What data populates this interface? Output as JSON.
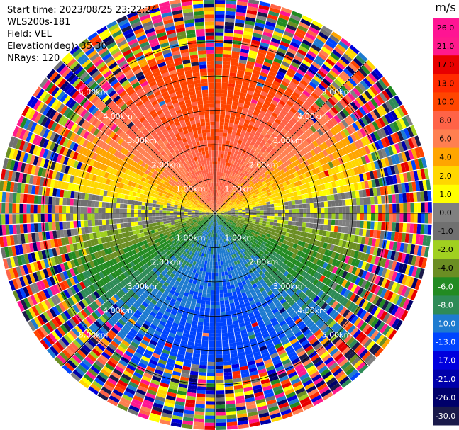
{
  "header": {
    "start_time": "Start time: 2023/08/25 23:22:24",
    "instrument": "WLS200s-181",
    "field": "Field: VEL",
    "elevation": "Elevation(deg): 35.30",
    "nrays": "NRays: 120"
  },
  "chart_data": {
    "type": "ppi",
    "field": "VEL",
    "units": "m/s",
    "n_rays": 120,
    "max_range_km": 5.0,
    "range_ring_labels": [
      "1.00km",
      "2.00km",
      "3.00km",
      "4.00km",
      "5.00km"
    ],
    "range_rings_km": [
      1,
      2,
      3,
      4,
      5
    ],
    "colorbar": {
      "unit_label": "m/s",
      "tick_labels": [
        "26.0",
        "21.0",
        "17.0",
        "13.0",
        "10.0",
        "8.0",
        "6.0",
        "4.0",
        "2.0",
        "1.0",
        "0.0",
        "-1.0",
        "-2.0",
        "-4.0",
        "-6.0",
        "-8.0",
        "-10.0",
        "-13.0",
        "-17.0",
        "-21.0",
        "-26.0",
        "-30.0"
      ],
      "colors": [
        "#ff1493",
        "#ff1a8c",
        "#e80000",
        "#ff2a00",
        "#ff4500",
        "#ff6347",
        "#ff7f50",
        "#ffa500",
        "#ffd700",
        "#ffff00",
        "#808080",
        "#707070",
        "#a0d020",
        "#6b8e23",
        "#228b22",
        "#2e8b57",
        "#1e7bd0",
        "#0044ff",
        "#0000dd",
        "#0000aa",
        "#00006a",
        "#1a1a4a"
      ]
    },
    "velocity_pattern": {
      "north_sector": "positive 6 to 17 m/s",
      "south_sector": "negative -6 to -13 m/s",
      "east_west": "near 0 m/s",
      "outer_ranges": "noisy"
    }
  }
}
